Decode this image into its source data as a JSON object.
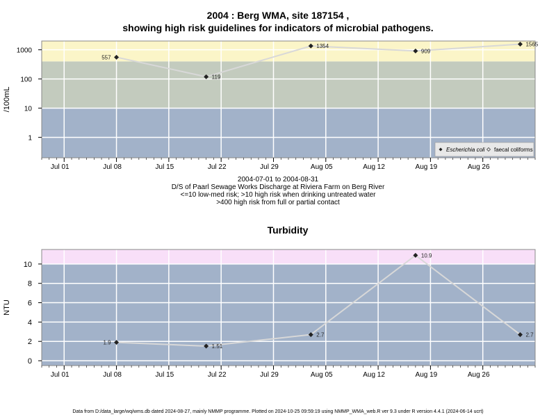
{
  "page": {
    "title_line1": "2004 : Berg WMA, site 187154 ,",
    "title_line2": "showing high risk guidelines for indicators of microbial pathogens.",
    "caption": [
      "2004-07-01 to 2004-08-31",
      "D/S of Paarl Sewage Works Discharge at Riviera Farm on Berg River",
      "<=10 low-med risk; >10 high risk when drinking untreated water",
      ">400 high risk from full or partial contact"
    ],
    "footer": "Data from D:/data_large/wq/wms.db dated 2024-08-27, mainly NMMP programme. Plotted on 2024-10-25 09:59:19 using NMMP_WMA_web.R ver 9.3 under R version 4.4.1 (2024-06-14 ucrt)"
  },
  "colors": {
    "high_risk_contact": "#fbf5c8",
    "high_risk_drinking": "#c3cbbe",
    "low_med_risk": "#a2b2c9",
    "turbidity_high": "#f8dff8",
    "gridline": "#ffffff",
    "series_line": "#d8d8d8",
    "marker": "#222222"
  },
  "chart_data": [
    {
      "type": "line",
      "ylabel": "/100mL",
      "yscale": "log",
      "ylim": [
        0.2,
        2000
      ],
      "xlim": [
        "2004-06-28",
        "2004-09-02"
      ],
      "yticks": [
        1,
        10,
        100,
        1000
      ],
      "ytick_labels": [
        "1",
        "10",
        "100",
        "1000"
      ],
      "xticks": [
        "2004-07-01",
        "2004-07-08",
        "2004-07-15",
        "2004-07-22",
        "2004-07-29",
        "2004-08-05",
        "2004-08-12",
        "2004-08-19",
        "2004-08-26"
      ],
      "xtick_labels": [
        "Jul 01",
        "Jul 08",
        "Jul 15",
        "Jul 22",
        "Jul 29",
        "Aug 05",
        "Aug 12",
        "Aug 19",
        "Aug 26"
      ],
      "bands": [
        {
          "from": 0.2,
          "to": 10,
          "color": "#a2b2c9"
        },
        {
          "from": 10,
          "to": 400,
          "color": "#c3cbbe"
        },
        {
          "from": 400,
          "to": 2000,
          "color": "#fbf5c8"
        }
      ],
      "grid": true,
      "series": [
        {
          "name": "Escherichia coli",
          "x": [
            "2004-07-08",
            "2004-07-20",
            "2004-08-03",
            "2004-08-17",
            "2004-08-31"
          ],
          "y": [
            557,
            119,
            1354,
            909,
            1565
          ],
          "labels": [
            "557",
            "119",
            "1354",
            "909",
            "1565"
          ]
        }
      ],
      "legend": {
        "position": "bottom-right",
        "entries": [
          {
            "label": "Escherichia coli",
            "italic": true,
            "marker": "filled-diamond"
          },
          {
            "label": "faecal coliforms",
            "italic": false,
            "marker": "open-diamond"
          }
        ]
      }
    },
    {
      "type": "line",
      "title": "Turbidity",
      "ylabel": "NTU",
      "yscale": "linear",
      "ylim": [
        -0.5,
        11.5
      ],
      "xlim": [
        "2004-06-28",
        "2004-09-02"
      ],
      "yticks": [
        0,
        2,
        4,
        6,
        8,
        10
      ],
      "ytick_labels": [
        "0",
        "2",
        "4",
        "6",
        "8",
        "10"
      ],
      "xticks": [
        "2004-07-01",
        "2004-07-08",
        "2004-07-15",
        "2004-07-22",
        "2004-07-29",
        "2004-08-05",
        "2004-08-12",
        "2004-08-19",
        "2004-08-26"
      ],
      "xtick_labels": [
        "Jul 01",
        "Jul 08",
        "Jul 15",
        "Jul 22",
        "Jul 29",
        "Aug 05",
        "Aug 12",
        "Aug 19",
        "Aug 26"
      ],
      "bands": [
        {
          "from": -0.5,
          "to": 10,
          "color": "#a2b2c9"
        },
        {
          "from": 10,
          "to": 11.5,
          "color": "#f8dff8"
        }
      ],
      "grid": true,
      "series": [
        {
          "x": [
            "2004-07-08",
            "2004-07-20",
            "2004-08-03",
            "2004-08-17",
            "2004-08-31"
          ],
          "y": [
            1.9,
            1.51,
            2.7,
            10.9,
            2.7
          ],
          "labels": [
            "1.9",
            "1.51",
            "2.7",
            "10.9",
            "2.7"
          ]
        }
      ]
    }
  ]
}
